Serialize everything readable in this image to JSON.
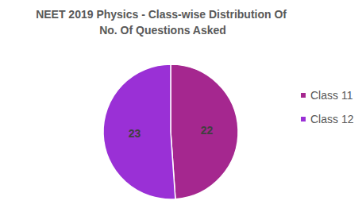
{
  "chart_data": {
    "type": "pie",
    "title": "NEET 2019 Physics - Class-wise Distribution Of No. Of Questions Asked",
    "categories": [
      "Class 11",
      "Class 12"
    ],
    "values": [
      22,
      23
    ],
    "colors": [
      "#a5278f",
      "#9a30d6"
    ],
    "data_labels": true,
    "legend": "right"
  }
}
